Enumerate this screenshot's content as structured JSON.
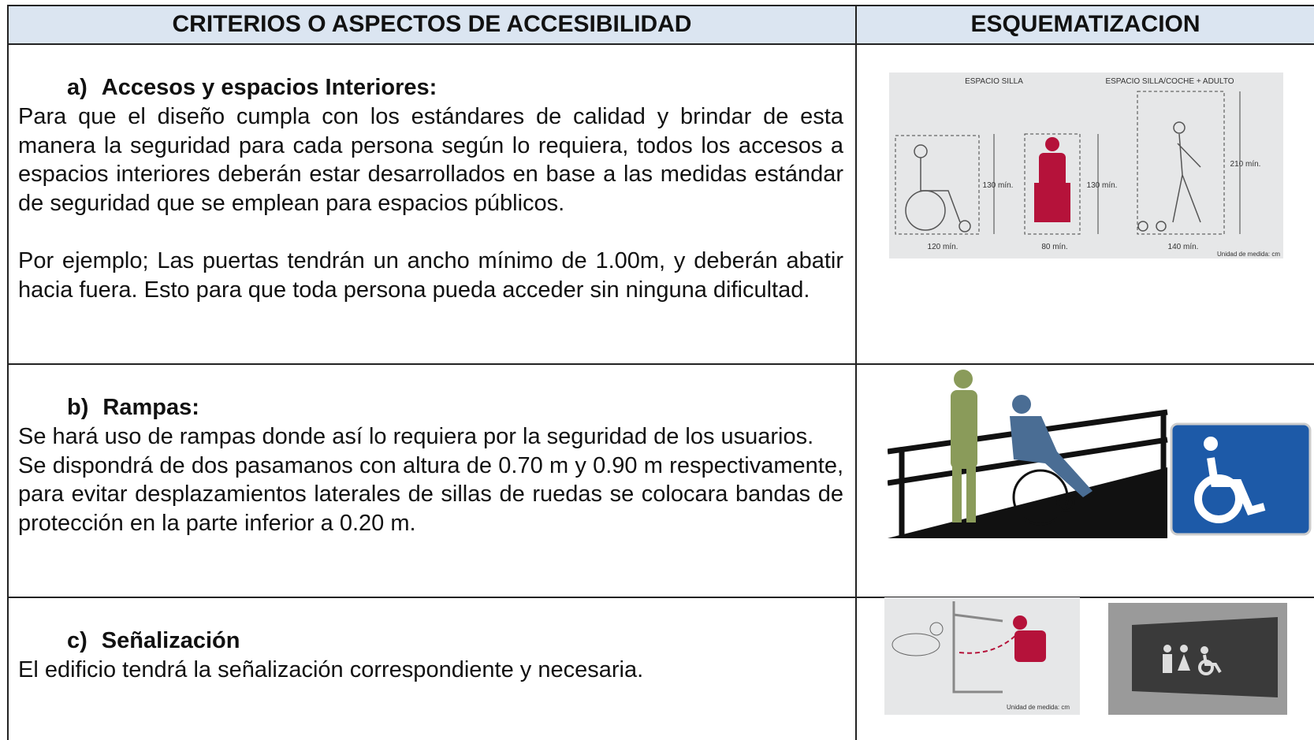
{
  "table": {
    "headers": [
      "CRITERIOS O ASPECTOS  DE ACCESIBILIDAD",
      "ESQUEMATIZACION"
    ],
    "rows": [
      {
        "marker": "a)",
        "title": "Accesos y espacios Interiores:",
        "paragraphs": [
          "Para que el diseño cumpla con  los estándares de calidad y brindar de esta manera  la seguridad para cada persona  según lo requiera, todos los accesos a espacios interiores deberán estar desarrollados en base a las medidas estándar de seguridad que se emplean para espacios públicos.",
          "Por ejemplo; Las puertas tendrán un ancho mínimo de 1.00m, y deberán abatir hacia fuera. Esto para que toda persona pueda acceder sin ninguna dificultad."
        ],
        "figure": {
          "labels": [
            "ESPACIO SILLA",
            "ESPACIO SILLA/COCHE + ADULTO",
            "130 mín.",
            "130 mín.",
            "210 mín.",
            "120 mín.",
            "80 mín.",
            "140 mín.",
            "Unidad de medida: cm"
          ]
        }
      },
      {
        "marker": "b)",
        "title": "Rampas:",
        "paragraphs": [
          "Se hará uso de rampas donde así lo requiera por la seguridad de los usuarios.",
          "Se dispondrá de dos pasamanos con altura de  0.70 m y 0.90 m respectivamente, para evitar desplazamientos laterales de sillas de ruedas se colocara bandas de protección en la parte inferior a 0.20 m."
        ]
      },
      {
        "marker": "c)",
        "title": "Señalización",
        "paragraphs": [
          "El edificio tendrá  la señalización correspondiente y necesaria."
        ],
        "figure": {
          "labels": [
            "Unidad de medida: cm"
          ]
        }
      }
    ]
  }
}
